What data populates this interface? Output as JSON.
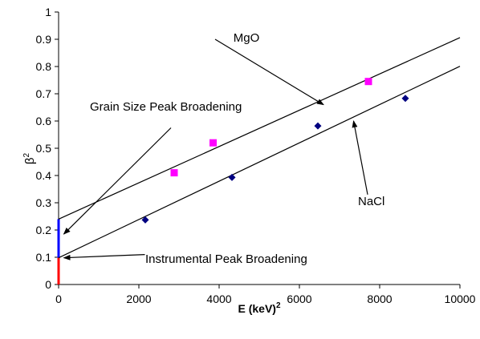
{
  "chart_data": {
    "type": "scatter",
    "title": "",
    "xlabel": "E (keV)",
    "xlabel_sup": "2",
    "ylabel": "β",
    "ylabel_sup": "2",
    "xlim": [
      0,
      10000
    ],
    "ylim": [
      0,
      1
    ],
    "xticks": [
      0,
      2000,
      4000,
      6000,
      8000,
      10000
    ],
    "xtick_labels": [
      "0",
      "2000",
      "4000",
      "6000",
      "8000",
      "10000"
    ],
    "yticks": [
      0,
      0.1,
      0.2,
      0.3,
      0.4,
      0.5,
      0.6,
      0.7,
      0.8,
      0.9,
      1
    ],
    "ytick_labels": [
      "0",
      "0.1",
      "0.2",
      "0.3",
      "0.4",
      "0.5",
      "0.6",
      "0.7",
      "0.8",
      "0.9",
      "1"
    ],
    "grid": false,
    "legend": "none",
    "series": [
      {
        "name": "MgO",
        "marker": "square",
        "color": "#ff00ff",
        "x": [
          2880,
          3850,
          7720
        ],
        "y": [
          0.41,
          0.52,
          0.745
        ],
        "fit": {
          "intercept": 0.24,
          "slope": 6.66e-05
        }
      },
      {
        "name": "NaCl",
        "marker": "diamond",
        "color": "#000080",
        "x": [
          2160,
          4320,
          6460,
          8640
        ],
        "y": [
          0.237,
          0.393,
          0.582,
          0.683
        ],
        "fit": {
          "intercept": 0.098,
          "slope": 7.03e-05
        }
      }
    ],
    "intercept_bars": [
      {
        "name": "grain-size",
        "y0": 0.098,
        "y1": 0.24,
        "color": "#0000ff"
      },
      {
        "name": "instrumental",
        "y0": 0,
        "y1": 0.098,
        "color": "#ff0000"
      }
    ],
    "annotations": [
      {
        "key": "mgo",
        "text": "MgO",
        "tail": [
          3900,
          0.9
        ],
        "head": [
          6600,
          0.66
        ]
      },
      {
        "key": "nacl",
        "text": "NaCl",
        "tail": [
          7700,
          0.33
        ],
        "head": [
          7350,
          0.6
        ]
      },
      {
        "key": "grain",
        "text": "Grain Size Peak Broadening",
        "tail": [
          2800,
          0.575
        ],
        "head": [
          130,
          0.185
        ]
      },
      {
        "key": "instrumental",
        "text": "Instrumental Peak Broadening",
        "tail": [
          2150,
          0.11
        ],
        "head": [
          130,
          0.098
        ]
      }
    ]
  }
}
